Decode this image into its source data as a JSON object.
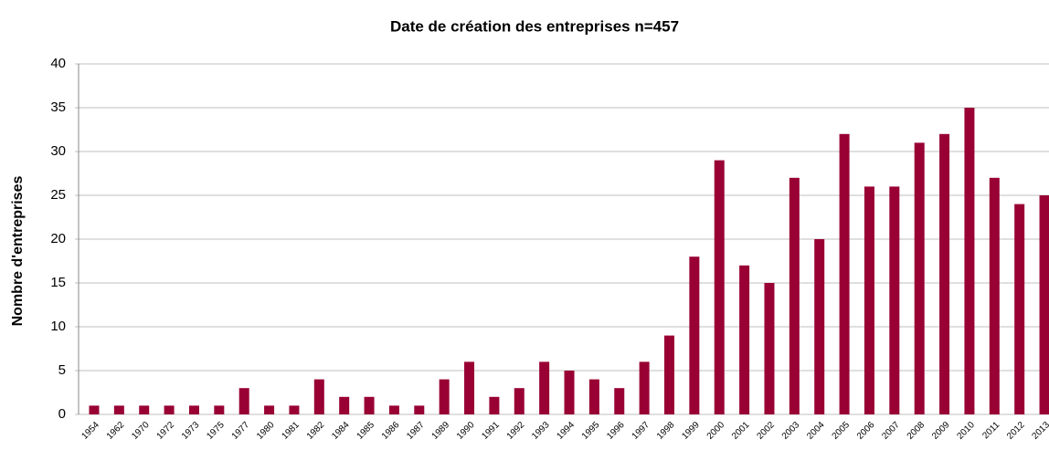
{
  "chart_data": {
    "type": "bar",
    "title": "Date de création des entreprises n=457",
    "ylabel": "Nombre d'entreprises",
    "categories": [
      "1954",
      "1962",
      "1970",
      "1972",
      "1973",
      "1975",
      "1977",
      "1980",
      "1981",
      "1982",
      "1984",
      "1985",
      "1986",
      "1987",
      "1989",
      "1990",
      "1991",
      "1992",
      "1993",
      "1994",
      "1995",
      "1996",
      "1997",
      "1998",
      "1999",
      "2000",
      "2001",
      "2002",
      "2003",
      "2004",
      "2005",
      "2006",
      "2007",
      "2008",
      "2009",
      "2010",
      "2011",
      "2012",
      "2013"
    ],
    "values": [
      1,
      1,
      1,
      1,
      1,
      1,
      3,
      1,
      1,
      4,
      2,
      2,
      1,
      1,
      4,
      6,
      2,
      3,
      6,
      5,
      4,
      3,
      6,
      9,
      18,
      29,
      17,
      15,
      27,
      20,
      32,
      26,
      26,
      31,
      32,
      35,
      27,
      24,
      25
    ],
    "color": "#990033",
    "ylim": [
      0,
      40
    ],
    "yticks": [
      0,
      5,
      10,
      15,
      20,
      25,
      30,
      35,
      40
    ],
    "grid": true
  }
}
